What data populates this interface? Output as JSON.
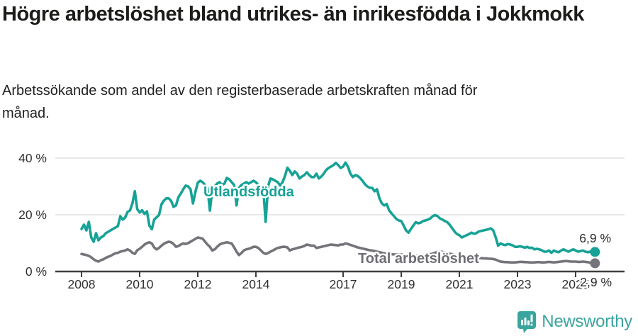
{
  "header": {
    "title": "Högre arbetslöshet bland utrikes- än inrikesfödda i Jokkmokk",
    "subtitle": "Arbetssökande som andel av den registerbaserade arbetskraften månad för månad."
  },
  "footer": {
    "brand": "Newsworthy"
  },
  "colors": {
    "foreign_born_line": "#17a296",
    "total_line": "#74747a",
    "total_label": "#6d6d74",
    "axis_text": "#303030",
    "end_label_text": "#2b2b2b",
    "grid": "#d9d9d9",
    "axis": "#3f3f3f",
    "brand_teal": "#3aa49f"
  },
  "chart_data": {
    "type": "line",
    "title": "Högre arbetslöshet bland utrikes- än inrikesfödda i Jokkmokk",
    "subtitle": "Arbetssökande som andel av den registerbaserade arbetskraften månad för månad.",
    "x_unit": "month",
    "x_start": "2008-01",
    "x_end": "2025-09",
    "ylim": [
      0,
      44
    ],
    "grid": "horizontal",
    "yticks": [
      {
        "value": 0,
        "label": "0 %"
      },
      {
        "value": 20,
        "label": "20 %"
      },
      {
        "value": 40,
        "label": "40 %"
      }
    ],
    "xticks": [
      2008,
      2010,
      2012,
      2014,
      2017,
      2019,
      2021,
      2023,
      2025
    ],
    "series": [
      {
        "name": "Utlandsfödda",
        "color": "#17a296",
        "end_label": "6,9 %",
        "end_value": 6.9,
        "values": [
          15.0,
          16.5,
          14.5,
          17.5,
          12.0,
          10.5,
          13.5,
          11.0,
          12.0,
          12.5,
          13.5,
          14.0,
          14.5,
          15.0,
          15.5,
          16.0,
          19.5,
          18.3,
          19.0,
          21.0,
          21.5,
          24.0,
          28.3,
          22.0,
          20.8,
          21.6,
          20.3,
          21.2,
          16.2,
          14.9,
          18.3,
          19.1,
          19.9,
          23.7,
          25.0,
          25.8,
          25.8,
          24.9,
          22.8,
          23.3,
          26.2,
          27.5,
          29.0,
          30.3,
          30.0,
          29.0,
          24.0,
          28.0,
          31.3,
          32.0,
          31.5,
          30.5,
          29.5,
          21.5,
          29.0,
          30.0,
          31.0,
          31.5,
          30.5,
          31.0,
          33.0,
          32.5,
          31.5,
          30.5,
          23.3,
          29.5,
          30.5,
          31.0,
          31.5,
          31.0,
          31.5,
          32.0,
          31.5,
          30.5,
          29.0,
          29.5,
          17.5,
          30.0,
          32.8,
          32.5,
          32.0,
          31.5,
          30.3,
          31.5,
          33.7,
          36.6,
          35.5,
          34.0,
          35.3,
          34.5,
          32.8,
          33.5,
          34.0,
          35.0,
          34.0,
          33.3,
          33.3,
          34.5,
          32.8,
          33.5,
          34.5,
          35.8,
          36.5,
          37.0,
          37.5,
          38.3,
          37.5,
          36.5,
          37.0,
          38.4,
          37.0,
          34.5,
          33.3,
          34.0,
          33.7,
          33.0,
          32.0,
          30.8,
          30.0,
          29.5,
          29.5,
          28.3,
          29.0,
          25.8,
          24.0,
          23.3,
          23.8,
          21.6,
          20.5,
          19.5,
          18.5,
          18.0,
          17.8,
          16.2,
          14.5,
          13.7,
          15.0,
          16.2,
          17.4,
          17.0,
          17.2,
          17.8,
          18.0,
          18.3,
          18.7,
          19.5,
          19.9,
          19.5,
          18.7,
          18.3,
          17.8,
          17.4,
          16.5,
          15.3,
          14.1,
          13.2,
          12.8,
          12.0,
          12.4,
          12.8,
          13.2,
          13.7,
          13.3,
          13.5,
          14.1,
          14.3,
          14.5,
          14.7,
          14.9,
          15.2,
          14.5,
          12.0,
          9.1,
          9.9,
          9.5,
          9.3,
          9.7,
          9.5,
          9.2,
          8.7,
          8.7,
          8.9,
          8.7,
          8.4,
          8.7,
          8.3,
          8.4,
          7.8,
          8.0,
          7.8,
          7.5,
          7.0,
          7.0,
          7.4,
          6.6,
          7.4,
          7.0,
          6.8,
          7.4,
          7.8,
          7.4,
          7.0,
          7.4,
          7.8,
          7.4,
          7.0,
          7.2,
          7.4,
          7.0,
          6.8,
          7.0,
          7.1,
          6.9
        ]
      },
      {
        "name": "Total arbetslöshet",
        "color": "#74747a",
        "end_label": "2,9 %",
        "end_value": 2.9,
        "values": [
          6.2,
          6.0,
          5.8,
          5.5,
          5.0,
          4.3,
          3.8,
          3.5,
          4.0,
          4.3,
          4.8,
          5.2,
          5.5,
          6.0,
          6.4,
          6.6,
          7.0,
          7.2,
          7.4,
          7.8,
          7.4,
          6.6,
          6.2,
          7.5,
          8.0,
          8.7,
          9.5,
          10.0,
          10.3,
          9.9,
          8.5,
          7.8,
          8.3,
          9.1,
          9.8,
          10.2,
          10.5,
          10.3,
          9.7,
          8.7,
          9.0,
          9.5,
          9.9,
          9.7,
          10.0,
          10.5,
          11.0,
          11.5,
          12.0,
          11.8,
          11.6,
          10.5,
          9.5,
          8.7,
          7.4,
          7.8,
          8.7,
          9.5,
          9.9,
          10.1,
          10.3,
          10.1,
          9.9,
          8.5,
          7.0,
          5.8,
          6.5,
          7.4,
          7.8,
          8.0,
          8.3,
          8.7,
          8.7,
          8.3,
          7.5,
          6.6,
          6.2,
          6.5,
          7.0,
          7.4,
          7.9,
          8.3,
          8.5,
          8.7,
          8.7,
          8.5,
          7.4,
          7.8,
          8.0,
          8.3,
          8.5,
          8.7,
          9.0,
          9.5,
          9.3,
          9.1,
          9.1,
          8.3,
          8.5,
          8.7,
          8.9,
          9.1,
          9.3,
          9.5,
          9.4,
          9.3,
          9.2,
          9.5,
          9.5,
          9.9,
          9.7,
          9.4,
          9.1,
          8.8,
          8.5,
          8.3,
          8.1,
          7.9,
          7.7,
          7.5,
          7.4,
          7.2,
          7.0,
          6.8,
          6.6,
          6.4,
          6.3,
          6.2,
          6.1,
          6.0,
          6.0,
          6.0,
          6.0,
          5.9,
          5.8,
          5.7,
          5.7,
          5.6,
          5.6,
          5.6,
          5.7,
          5.8,
          5.9,
          6.0,
          6.1,
          6.3,
          6.6,
          6.9,
          7.0,
          6.9,
          6.7,
          6.5,
          6.3,
          6.1,
          5.9,
          5.7,
          5.6,
          5.4,
          5.3,
          5.2,
          5.1,
          5.0,
          4.9,
          4.8,
          4.8,
          4.7,
          4.6,
          4.6,
          4.5,
          4.5,
          4.4,
          4.2,
          3.8,
          3.5,
          3.4,
          3.3,
          3.3,
          3.2,
          3.2,
          3.2,
          3.3,
          3.4,
          3.4,
          3.3,
          3.3,
          3.2,
          3.2,
          3.2,
          3.3,
          3.3,
          3.2,
          3.2,
          3.3,
          3.4,
          3.3,
          3.2,
          3.3,
          3.4,
          3.5,
          3.6,
          3.7,
          3.6,
          3.5,
          3.5,
          3.5,
          3.4,
          3.4,
          3.5,
          3.4,
          3.3,
          3.1,
          3.0,
          2.9
        ]
      }
    ]
  }
}
